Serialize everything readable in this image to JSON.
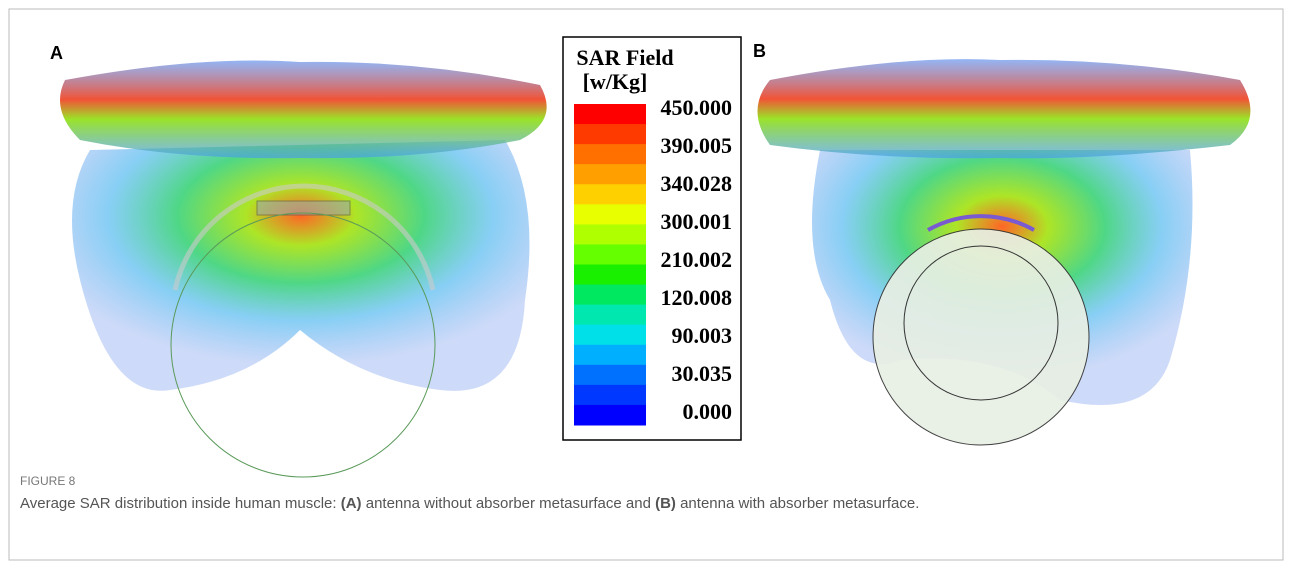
{
  "panels": [
    {
      "label": "A"
    },
    {
      "label": "B"
    }
  ],
  "legend": {
    "title": "SAR Field",
    "unit": "[w/Kg]",
    "labels": [
      "450.000",
      "390.005",
      "340.028",
      "300.001",
      "210.002",
      "120.008",
      "90.003",
      "30.035",
      "0.000"
    ],
    "colors": [
      "#ff0000",
      "#ff3a00",
      "#ff7000",
      "#ffa000",
      "#ffd000",
      "#e8ff00",
      "#b0ff00",
      "#66ff00",
      "#18f000",
      "#00e860",
      "#00e8b0",
      "#00e0e8",
      "#00b0ff",
      "#0070ff",
      "#0038ff",
      "#0000ff"
    ]
  },
  "caption": {
    "figure": "FIGURE 8",
    "parts": [
      "Average SAR distribution inside human muscle: ",
      "(A)",
      " antenna without absorber metasurface and ",
      "(B)",
      " antenna with absorber metasurface."
    ]
  }
}
